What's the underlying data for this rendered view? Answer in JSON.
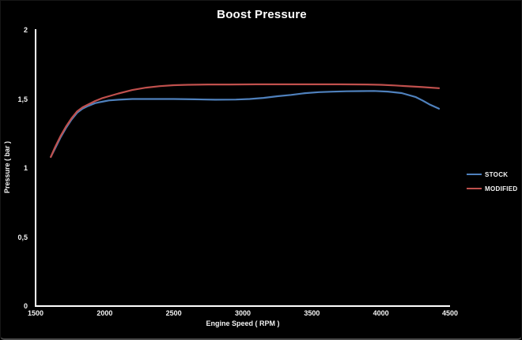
{
  "chart_data": {
    "type": "line",
    "title": "Boost Pressure",
    "xlabel": "Engine Speed ( RPM )",
    "ylabel": "Pressure ( bar )",
    "xlim": [
      1500,
      4500
    ],
    "ylim": [
      0,
      2
    ],
    "x_ticks": [
      1500,
      2000,
      2500,
      3000,
      3500,
      4000,
      4500
    ],
    "x_tick_labels": [
      "1500",
      "2000",
      "2500",
      "3000",
      "3500",
      "4000",
      "4500"
    ],
    "y_ticks": [
      0,
      0.5,
      1,
      1.5,
      2
    ],
    "y_tick_labels": [
      "0",
      "0,5",
      "1",
      "1,5",
      "2"
    ],
    "grid": false,
    "background_color": "#000000",
    "axis_color": "#ffffff",
    "text_color": "#f2f2f2",
    "legend_position": "right",
    "series": [
      {
        "name": "STOCK",
        "color": "#4F81BD",
        "points": [
          [
            1610,
            1.08
          ],
          [
            1640,
            1.14
          ],
          [
            1680,
            1.22
          ],
          [
            1720,
            1.29
          ],
          [
            1760,
            1.35
          ],
          [
            1800,
            1.4
          ],
          [
            1840,
            1.43
          ],
          [
            1880,
            1.45
          ],
          [
            1930,
            1.47
          ],
          [
            1980,
            1.48
          ],
          [
            2030,
            1.49
          ],
          [
            2100,
            1.495
          ],
          [
            2200,
            1.5
          ],
          [
            2350,
            1.5
          ],
          [
            2500,
            1.5
          ],
          [
            2650,
            1.498
          ],
          [
            2800,
            1.495
          ],
          [
            2950,
            1.496
          ],
          [
            3050,
            1.5
          ],
          [
            3150,
            1.508
          ],
          [
            3250,
            1.52
          ],
          [
            3350,
            1.53
          ],
          [
            3450,
            1.542
          ],
          [
            3550,
            1.55
          ],
          [
            3650,
            1.553
          ],
          [
            3750,
            1.556
          ],
          [
            3850,
            1.557
          ],
          [
            3950,
            1.558
          ],
          [
            4050,
            1.554
          ],
          [
            4150,
            1.543
          ],
          [
            4250,
            1.515
          ],
          [
            4300,
            1.49
          ],
          [
            4350,
            1.462
          ],
          [
            4420,
            1.43
          ]
        ]
      },
      {
        "name": "MODIFIED",
        "color": "#C0504D",
        "points": [
          [
            1610,
            1.08
          ],
          [
            1640,
            1.15
          ],
          [
            1680,
            1.23
          ],
          [
            1720,
            1.3
          ],
          [
            1760,
            1.36
          ],
          [
            1800,
            1.41
          ],
          [
            1840,
            1.44
          ],
          [
            1880,
            1.46
          ],
          [
            1930,
            1.485
          ],
          [
            1980,
            1.505
          ],
          [
            2030,
            1.52
          ],
          [
            2100,
            1.54
          ],
          [
            2200,
            1.565
          ],
          [
            2300,
            1.582
          ],
          [
            2400,
            1.593
          ],
          [
            2500,
            1.6
          ],
          [
            2600,
            1.603
          ],
          [
            2750,
            1.605
          ],
          [
            2900,
            1.605
          ],
          [
            3100,
            1.606
          ],
          [
            3300,
            1.606
          ],
          [
            3500,
            1.606
          ],
          [
            3700,
            1.606
          ],
          [
            3900,
            1.605
          ],
          [
            4000,
            1.603
          ],
          [
            4100,
            1.598
          ],
          [
            4200,
            1.592
          ],
          [
            4300,
            1.586
          ],
          [
            4420,
            1.578
          ]
        ]
      }
    ]
  }
}
